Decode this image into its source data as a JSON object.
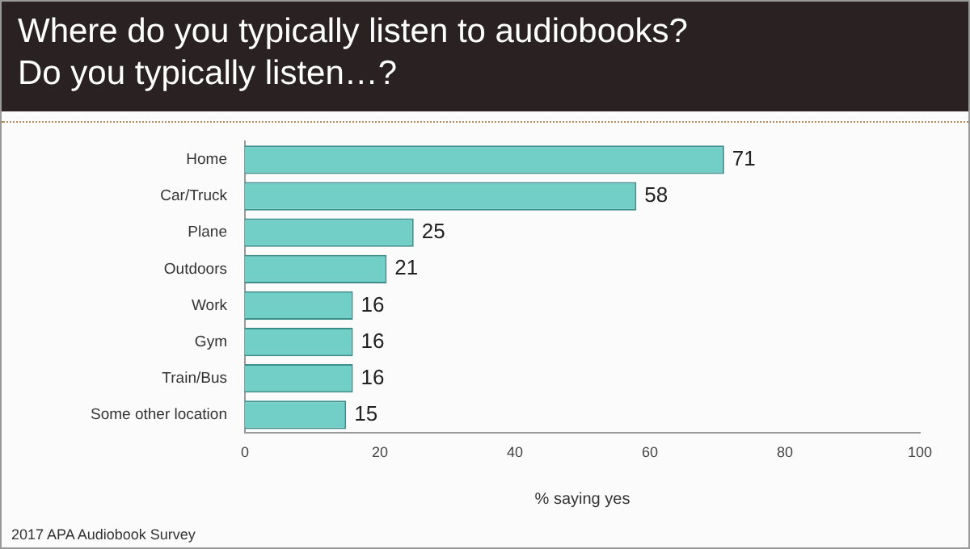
{
  "chart_data": {
    "type": "bar",
    "orientation": "horizontal",
    "title": "Where do you typically listen to audiobooks?",
    "subtitle": "Do you typically listen…?",
    "categories": [
      "Home",
      "Car/Truck",
      "Plane",
      "Outdoors",
      "Work",
      "Gym",
      "Train/Bus",
      "Some other location"
    ],
    "values": [
      71,
      58,
      25,
      21,
      16,
      16,
      16,
      15
    ],
    "color": "#72cfc8",
    "xlim": [
      0,
      100
    ],
    "xticks": [
      0,
      20,
      40,
      60,
      80,
      100
    ],
    "xlabel": "% saying yes",
    "grid": false,
    "legend": false,
    "data_labels": true,
    "annotations": [
      "2017 APA Audiobook Survey"
    ]
  }
}
